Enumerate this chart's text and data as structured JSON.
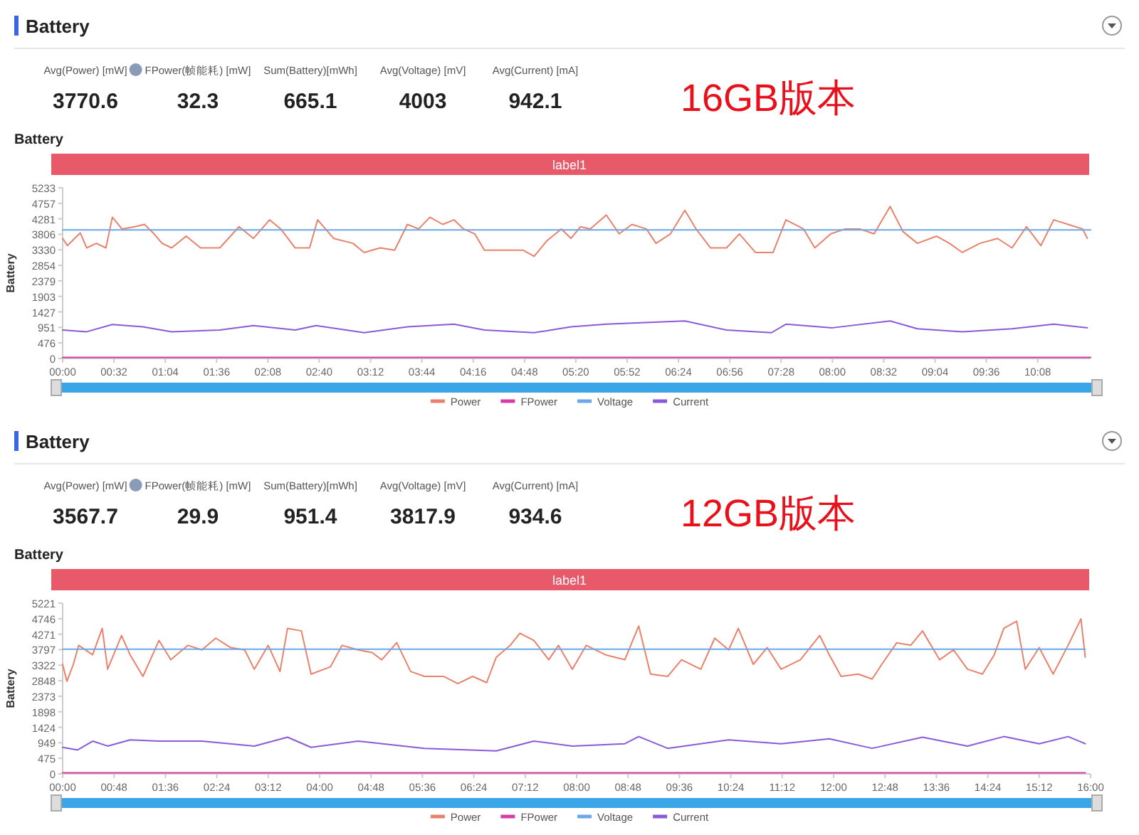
{
  "chart_data": [
    {
      "type": "other",
      "title": "Battery",
      "annotations": [
        "Avg(Power) [mW]",
        "3770.6",
        "FPower(帧能耗) [mW]",
        "32.3",
        "Sum(Battery)[mWh]",
        "665.1",
        "Avg(Voltage) [mV]",
        "4003",
        "Avg(Current) [mA]",
        "942.1",
        "16GB版本"
      ]
    },
    {
      "type": "line",
      "title": "Battery",
      "ylabel": "Battery",
      "annotations": [
        "label1"
      ],
      "legend": "bottom",
      "xlim": [
        0,
        641
      ],
      "ylim": [
        0,
        5233
      ],
      "xticks": [
        {
          "value": 0,
          "label": "00:00"
        },
        {
          "value": 32,
          "label": "00:32"
        },
        {
          "value": 64,
          "label": "01:04"
        },
        {
          "value": 96,
          "label": "01:36"
        },
        {
          "value": 128,
          "label": "02:08"
        },
        {
          "value": 160,
          "label": "02:40"
        },
        {
          "value": 192,
          "label": "03:12"
        },
        {
          "value": 224,
          "label": "03:44"
        },
        {
          "value": 256,
          "label": "04:16"
        },
        {
          "value": 288,
          "label": "04:48"
        },
        {
          "value": 320,
          "label": "05:20"
        },
        {
          "value": 352,
          "label": "05:52"
        },
        {
          "value": 384,
          "label": "06:24"
        },
        {
          "value": 416,
          "label": "06:56"
        },
        {
          "value": 448,
          "label": "07:28"
        },
        {
          "value": 480,
          "label": "08:00"
        },
        {
          "value": 512,
          "label": "08:32"
        },
        {
          "value": 544,
          "label": "09:04"
        },
        {
          "value": 576,
          "label": "09:36"
        },
        {
          "value": 608,
          "label": "10:08"
        }
      ],
      "yticks": [
        0,
        476,
        951,
        1427,
        1903,
        2379,
        2854,
        3330,
        3806,
        4281,
        4757,
        5233
      ],
      "series": [
        {
          "name": "Power",
          "color": "#e8826a",
          "x": [
            0,
            3,
            11,
            15,
            21,
            27,
            31,
            37,
            45,
            51,
            57,
            62,
            68,
            77,
            86,
            98,
            110,
            119,
            129,
            136,
            145,
            154,
            159,
            169,
            181,
            188,
            198,
            207,
            215,
            222,
            229,
            237,
            244,
            250,
            257,
            263,
            275,
            287,
            294,
            302,
            311,
            317,
            323,
            329,
            339,
            347,
            355,
            364,
            370,
            379,
            388,
            395,
            404,
            414,
            422,
            432,
            443,
            451,
            462,
            469,
            479,
            488,
            497,
            506,
            516,
            524,
            533,
            545,
            553,
            561,
            572,
            583,
            592,
            601,
            610,
            618,
            627,
            636,
            639
          ],
          "values": [
            3680,
            3460,
            3850,
            3390,
            3530,
            3390,
            4330,
            3970,
            4040,
            4110,
            3820,
            3530,
            3390,
            3750,
            3390,
            3390,
            4040,
            3680,
            4250,
            3970,
            3390,
            3390,
            4250,
            3680,
            3530,
            3250,
            3390,
            3320,
            4110,
            3970,
            4330,
            4110,
            4250,
            3970,
            3820,
            3320,
            3320,
            3320,
            3130,
            3610,
            3970,
            3680,
            4040,
            3970,
            4400,
            3820,
            4110,
            3970,
            3530,
            3820,
            4540,
            3970,
            3390,
            3390,
            3820,
            3250,
            3250,
            4250,
            3970,
            3390,
            3820,
            3970,
            3970,
            3820,
            4660,
            3890,
            3530,
            3750,
            3530,
            3250,
            3530,
            3680,
            3390,
            4040,
            3460,
            4250,
            4110,
            3970,
            3680
          ]
        },
        {
          "name": "FPower",
          "color": "#d63ca8",
          "x": [
            0,
            641
          ],
          "values": [
            30,
            30
          ]
        },
        {
          "name": "Voltage",
          "color": "#6aa8e8",
          "x": [
            0,
            641
          ],
          "values": [
            3940,
            3940
          ]
        },
        {
          "name": "Current",
          "color": "#8a5ad8",
          "x": [
            0,
            15,
            31,
            50,
            68,
            98,
            119,
            145,
            158,
            188,
            215,
            244,
            263,
            294,
            317,
            339,
            388,
            414,
            442,
            451,
            480,
            516,
            533,
            561,
            592,
            618,
            639
          ],
          "values": [
            870,
            820,
            1040,
            970,
            820,
            870,
            1010,
            870,
            1010,
            790,
            970,
            1050,
            870,
            790,
            970,
            1050,
            1150,
            870,
            790,
            1050,
            940,
            1150,
            910,
            820,
            910,
            1050,
            940
          ]
        }
      ]
    },
    {
      "type": "other",
      "title": "Battery",
      "annotations": [
        "Avg(Power) [mW]",
        "3567.7",
        "FPower(帧能耗) [mW]",
        "29.9",
        "Sum(Battery)[mWh]",
        "951.4",
        "Avg(Voltage) [mV]",
        "3817.9",
        "Avg(Current) [mA]",
        "934.6",
        "12GB版本"
      ]
    },
    {
      "type": "line",
      "title": "Battery",
      "ylabel": "Battery",
      "annotations": [
        "label1"
      ],
      "legend": "bottom",
      "xlim": [
        0,
        960
      ],
      "ylim": [
        0,
        5221
      ],
      "xticks": [
        {
          "value": 0,
          "label": "00:00"
        },
        {
          "value": 48,
          "label": "00:48"
        },
        {
          "value": 96,
          "label": "01:36"
        },
        {
          "value": 144,
          "label": "02:24"
        },
        {
          "value": 192,
          "label": "03:12"
        },
        {
          "value": 240,
          "label": "04:00"
        },
        {
          "value": 288,
          "label": "04:48"
        },
        {
          "value": 336,
          "label": "05:36"
        },
        {
          "value": 384,
          "label": "06:24"
        },
        {
          "value": 432,
          "label": "07:12"
        },
        {
          "value": 480,
          "label": "08:00"
        },
        {
          "value": 528,
          "label": "08:48"
        },
        {
          "value": 576,
          "label": "09:36"
        },
        {
          "value": 624,
          "label": "10:24"
        },
        {
          "value": 672,
          "label": "11:12"
        },
        {
          "value": 720,
          "label": "12:00"
        },
        {
          "value": 768,
          "label": "12:48"
        },
        {
          "value": 816,
          "label": "13:36"
        },
        {
          "value": 864,
          "label": "14:24"
        },
        {
          "value": 912,
          "label": "15:12"
        },
        {
          "value": 960,
          "label": "16:00"
        }
      ],
      "yticks": [
        0,
        475,
        949,
        1424,
        1898,
        2373,
        2848,
        3322,
        3797,
        4271,
        4746,
        5221
      ],
      "series": [
        {
          "name": "Power",
          "color": "#e8826a",
          "x": [
            0,
            4,
            10,
            15,
            28,
            37,
            42,
            55,
            63,
            75,
            90,
            101,
            117,
            130,
            143,
            157,
            170,
            179,
            192,
            203,
            210,
            223,
            232,
            250,
            261,
            276,
            289,
            298,
            312,
            325,
            338,
            356,
            369,
            383,
            396,
            405,
            418,
            427,
            440,
            454,
            463,
            476,
            489,
            507,
            525,
            538,
            549,
            565,
            578,
            596,
            609,
            622,
            631,
            645,
            658,
            671,
            689,
            707,
            716,
            727,
            743,
            756,
            765,
            779,
            792,
            803,
            819,
            832,
            845,
            859,
            870,
            879,
            891,
            899,
            912,
            925,
            939,
            951,
            955
          ],
          "values": [
            3350,
            2830,
            3350,
            3930,
            3640,
            4450,
            3200,
            4230,
            3640,
            2980,
            4080,
            3490,
            3930,
            3790,
            4150,
            3860,
            3790,
            3200,
            3930,
            3130,
            4450,
            4370,
            3050,
            3270,
            3930,
            3790,
            3710,
            3490,
            4010,
            3130,
            2980,
            2980,
            2760,
            2980,
            2790,
            3570,
            3930,
            4300,
            4080,
            3490,
            3930,
            3200,
            3930,
            3640,
            3490,
            4520,
            3050,
            2980,
            3490,
            3200,
            4150,
            3790,
            4450,
            3350,
            3860,
            3200,
            3490,
            4230,
            3640,
            2980,
            3050,
            2900,
            3350,
            4010,
            3930,
            4370,
            3490,
            3790,
            3200,
            3050,
            3640,
            4450,
            4670,
            3200,
            3860,
            3050,
            3930,
            4740,
            3570
          ]
        },
        {
          "name": "FPower",
          "color": "#d63ca8",
          "x": [
            0,
            955
          ],
          "values": [
            30,
            30
          ]
        },
        {
          "name": "Voltage",
          "color": "#6aa8e8",
          "x": [
            0,
            955
          ],
          "values": [
            3810,
            3810
          ]
        },
        {
          "name": "Current",
          "color": "#8a5ad8",
          "x": [
            0,
            14,
            28,
            42,
            63,
            90,
            130,
            179,
            210,
            232,
            276,
            338,
            405,
            440,
            476,
            525,
            538,
            565,
            622,
            671,
            716,
            756,
            803,
            845,
            879,
            912,
            939,
            955
          ],
          "values": [
            810,
            730,
            1000,
            850,
            1040,
            1000,
            1000,
            850,
            1120,
            810,
            1000,
            780,
            700,
            1000,
            850,
            920,
            1140,
            780,
            1040,
            920,
            1070,
            780,
            1120,
            850,
            1140,
            920,
            1140,
            920
          ]
        }
      ]
    }
  ]
}
